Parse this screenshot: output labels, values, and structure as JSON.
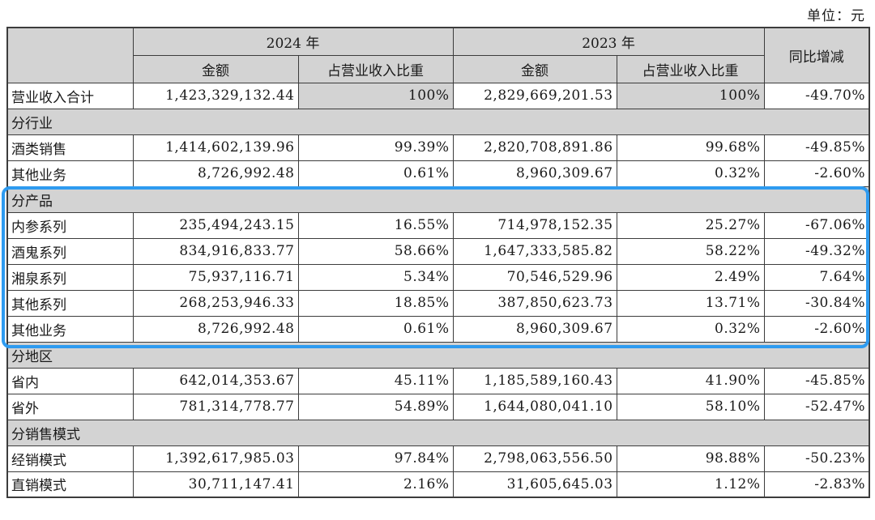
{
  "meta": {
    "unit_label": "单位：元"
  },
  "colors": {
    "header_bg": "#d3d3d3",
    "highlight_border": "#2e9bf0",
    "grid_line": "#3c3c3c"
  },
  "table": {
    "header": {
      "year_2024": "2024 年",
      "year_2023": "2023 年",
      "yoy": "同比增减",
      "amount": "金额",
      "share": "占营业收入比重"
    },
    "rows": [
      {
        "type": "total",
        "label": "营业收入合计",
        "a2024": "1,423,329,132.44",
        "s2024": "100%",
        "a2023": "2,829,669,201.53",
        "s2023": "100%",
        "yoy": "-49.70%"
      },
      {
        "type": "section",
        "label": "分行业"
      },
      {
        "type": "data",
        "label": "酒类销售",
        "a2024": "1,414,602,139.96",
        "s2024": "99.39%",
        "a2023": "2,820,708,891.86",
        "s2023": "99.68%",
        "yoy": "-49.85%"
      },
      {
        "type": "data",
        "label": "其他业务",
        "a2024": "8,726,992.48",
        "s2024": "0.61%",
        "a2023": "8,960,309.67",
        "s2023": "0.32%",
        "yoy": "-2.60%"
      },
      {
        "type": "section",
        "label": "分产品"
      },
      {
        "type": "data",
        "label": "内参系列",
        "a2024": "235,494,243.15",
        "s2024": "16.55%",
        "a2023": "714,978,152.35",
        "s2023": "25.27%",
        "yoy": "-67.06%"
      },
      {
        "type": "data",
        "label": "酒鬼系列",
        "a2024": "834,916,833.77",
        "s2024": "58.66%",
        "a2023": "1,647,333,585.82",
        "s2023": "58.22%",
        "yoy": "-49.32%"
      },
      {
        "type": "data",
        "label": "湘泉系列",
        "a2024": "75,937,116.71",
        "s2024": "5.34%",
        "a2023": "70,546,529.96",
        "s2023": "2.49%",
        "yoy": "7.64%"
      },
      {
        "type": "data",
        "label": "其他系列",
        "a2024": "268,253,946.33",
        "s2024": "18.85%",
        "a2023": "387,850,623.73",
        "s2023": "13.71%",
        "yoy": "-30.84%"
      },
      {
        "type": "data",
        "label": "其他业务",
        "a2024": "8,726,992.48",
        "s2024": "0.61%",
        "a2023": "8,960,309.67",
        "s2023": "0.32%",
        "yoy": "-2.60%"
      },
      {
        "type": "section",
        "label": "分地区"
      },
      {
        "type": "data",
        "label": "省内",
        "a2024": "642,014,353.67",
        "s2024": "45.11%",
        "a2023": "1,185,589,160.43",
        "s2023": "41.90%",
        "yoy": "-45.85%"
      },
      {
        "type": "data",
        "label": "省外",
        "a2024": "781,314,778.77",
        "s2024": "54.89%",
        "a2023": "1,644,080,041.10",
        "s2023": "58.10%",
        "yoy": "-52.47%"
      },
      {
        "type": "section",
        "label": "分销售模式"
      },
      {
        "type": "data",
        "label": "经销模式",
        "a2024": "1,392,617,985.03",
        "s2024": "97.84%",
        "a2023": "2,798,063,556.50",
        "s2023": "98.88%",
        "yoy": "-50.23%"
      },
      {
        "type": "data",
        "label": "直销模式",
        "a2024": "30,711,147.41",
        "s2024": "2.16%",
        "a2023": "31,605,645.03",
        "s2023": "1.12%",
        "yoy": "-2.83%"
      }
    ]
  }
}
